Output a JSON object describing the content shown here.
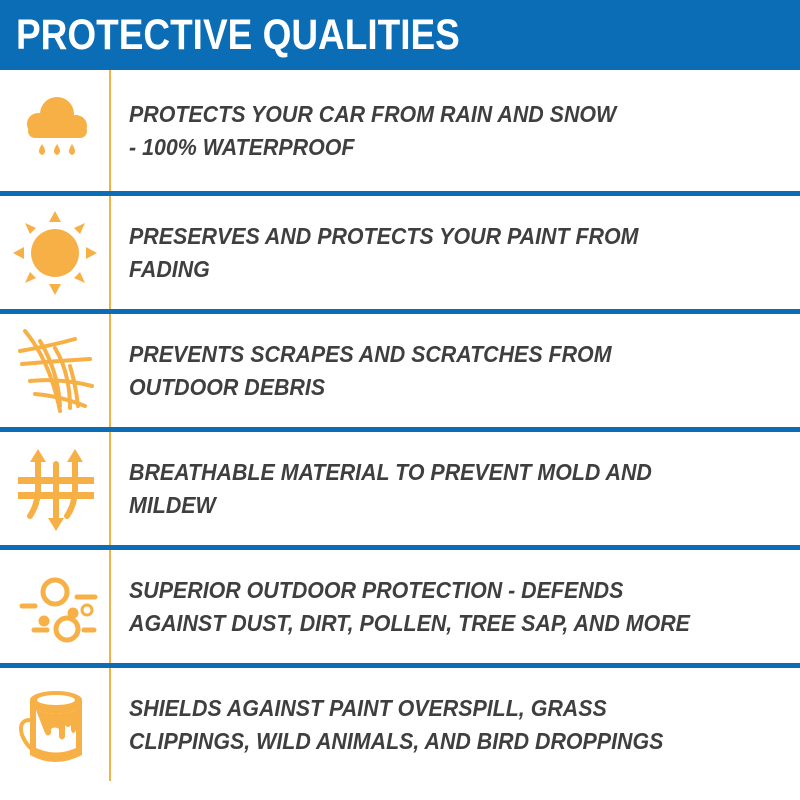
{
  "header": {
    "title": "PROTECTIVE QUALITIES"
  },
  "colors": {
    "header_bg": "#0b6db6",
    "icon": "#f7b046",
    "text": "#3f3f3f"
  },
  "items": [
    {
      "icon": "rain-cloud-icon",
      "lines": [
        "PROTECTS YOUR CAR FROM RAIN AND SNOW",
        "- 100% WATERPROOF"
      ]
    },
    {
      "icon": "sun-icon",
      "lines": [
        "PRESERVES AND PROTECTS YOUR PAINT FROM",
        "FADING"
      ]
    },
    {
      "icon": "scratch-mesh-icon",
      "lines": [
        "PREVENTS SCRAPES AND SCRATCHES FROM",
        "OUTDOOR DEBRIS"
      ]
    },
    {
      "icon": "breathable-arrows-icon",
      "lines": [
        "BREATHABLE MATERIAL TO PREVENT MOLD AND",
        "MILDEW"
      ]
    },
    {
      "icon": "dust-particles-icon",
      "lines": [
        "SUPERIOR OUTDOOR PROTECTION - DEFENDS",
        "AGAINST DUST, DIRT, POLLEN, TREE SAP, AND MORE"
      ]
    },
    {
      "icon": "paint-bucket-icon",
      "lines": [
        "SHIELDS AGAINST PAINT OVERSPILL, GRASS",
        "CLIPPINGS, WILD ANIMALS, AND BIRD DROPPINGS"
      ]
    }
  ]
}
